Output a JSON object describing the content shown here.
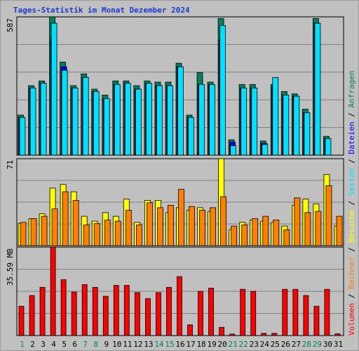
{
  "title": "Tages-Statistik im Monat Dezember 2024",
  "colors": {
    "background": "#c0c0c0",
    "grid": "#808080",
    "anfragen": "#00805c",
    "dateien": "#0000ff",
    "seiten": "#00e0ff",
    "besuche": "#ffff00",
    "rechner": "#ff8000",
    "volumen": "#ff0000",
    "weekday_label": "#000000",
    "weekend_label": "#00805c"
  },
  "legend_right": [
    {
      "text": "Anfragen",
      "color": "#00805c"
    },
    {
      "text": "Dateien",
      "color": "#0000ff"
    },
    {
      "text": "Seiten",
      "color": "#00e0ff"
    },
    {
      "text": "Besuche",
      "color": "#ffff00"
    },
    {
      "text": "Rechner",
      "color": "#ff8000"
    },
    {
      "text": "Volumen",
      "color": "#ff0000"
    }
  ],
  "legend_separator": " / ",
  "chart_data": {
    "type": "bar",
    "title": "Tages-Statistik im Monat Dezember 2024",
    "categories": [
      "1",
      "2",
      "3",
      "4",
      "5",
      "6",
      "7",
      "8",
      "9",
      "10",
      "11",
      "12",
      "13",
      "14",
      "15",
      "16",
      "17",
      "18",
      "19",
      "20",
      "21",
      "22",
      "23",
      "24",
      "25",
      "26",
      "27",
      "28",
      "29",
      "30",
      "31"
    ],
    "weekend_days": [
      "1",
      "7",
      "8",
      "14",
      "15",
      "21",
      "22",
      "28",
      "29"
    ],
    "panels": [
      {
        "name": "requests",
        "ymax_label": "587",
        "ymax": 587,
        "series": [
          {
            "name": "Anfragen",
            "color": "#00805c",
            "values": [
              170,
              295,
              315,
              587,
              395,
              295,
              345,
              280,
              255,
              315,
              315,
              295,
              315,
              310,
              310,
              390,
              170,
              350,
              310,
              580,
              65,
              300,
              300,
              60,
              300,
              270,
              260,
              195,
              580,
              80,
              0
            ]
          },
          {
            "name": "Dateien",
            "color": "#0000ff",
            "values": [
              160,
              285,
              305,
              495,
              375,
              285,
              330,
              270,
              240,
              300,
              305,
              280,
              305,
              295,
              295,
              375,
              160,
              300,
              300,
              490,
              55,
              285,
              285,
              50,
              290,
              255,
              250,
              180,
              560,
              70,
              0
            ]
          },
          {
            "name": "Seiten",
            "color": "#00e0ff",
            "values": [
              160,
              285,
              305,
              560,
              360,
              285,
              330,
              270,
              240,
              300,
              305,
              280,
              305,
              295,
              295,
              375,
              160,
              300,
              300,
              550,
              40,
              285,
              285,
              45,
              330,
              255,
              250,
              180,
              560,
              70,
              0
            ]
          }
        ]
      },
      {
        "name": "visits",
        "ymax_label": "71",
        "ymax": 71,
        "series": [
          {
            "name": "Besuche",
            "color": "#ffff00",
            "values": [
              18,
              22,
              26,
              47,
              50,
              44,
              24,
              20,
              27,
              24,
              38,
              19,
              37,
              37,
              27,
              31,
              29,
              31,
              28,
              71,
              13,
              19,
              21,
              20,
              19,
              16,
              33,
              38,
              34,
              58,
              16
            ]
          },
          {
            "name": "Rechner",
            "color": "#ff8000",
            "values": [
              19,
              22,
              24,
              30,
              44,
              37,
              17,
              18,
              21,
              20,
              29,
              17,
              35,
              31,
              33,
              46,
              32,
              29,
              31,
              40,
              16,
              17,
              22,
              24,
              21,
              13,
              39,
              27,
              28,
              49,
              24
            ]
          }
        ]
      },
      {
        "name": "volume",
        "ymax_label": "35.59 MB",
        "ymax": 35.59,
        "series": [
          {
            "name": "Volumen",
            "color": "#ff0000",
            "values": [
              11.8,
              16.1,
              19.4,
              35.59,
              22.5,
              17.5,
              20.5,
              19.4,
              15.8,
              20.2,
              20.2,
              17.3,
              14.9,
              17.3,
              19.4,
              23.7,
              4.3,
              17.8,
              19.1,
              3.3,
              0.6,
              18.6,
              17.8,
              0.9,
              0.9,
              18.6,
              18.6,
              16.1,
              11.8,
              18.6,
              0.7
            ]
          }
        ]
      }
    ]
  }
}
